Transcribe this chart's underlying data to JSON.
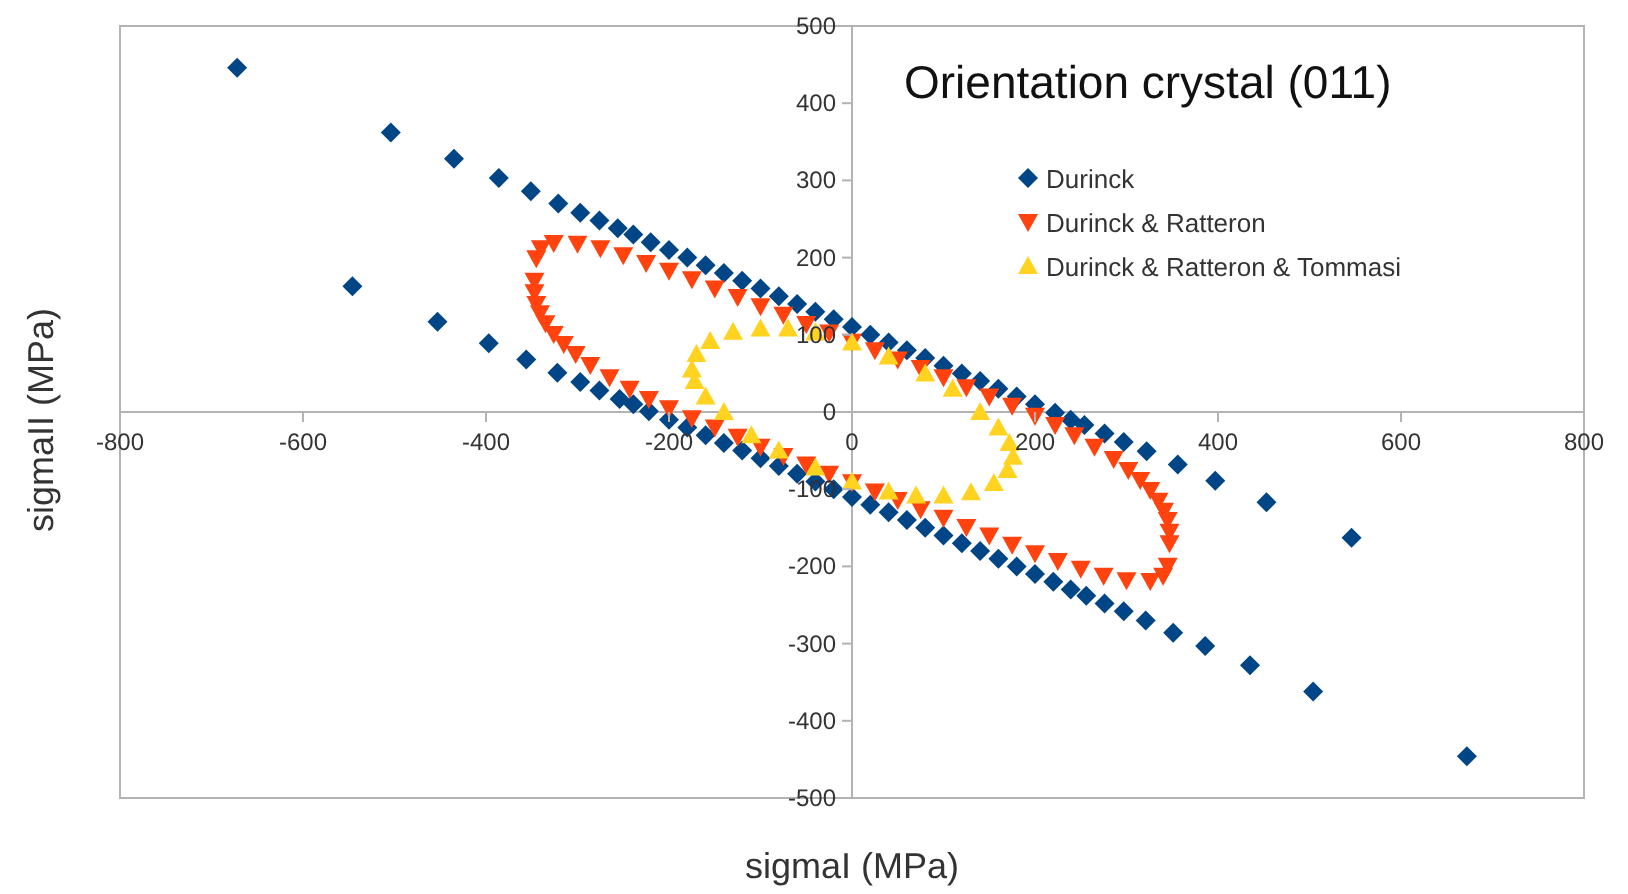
{
  "chart_data": {
    "type": "scatter",
    "title": "Orientation crystal (011)",
    "xlabel": "sigmaI (MPa)",
    "ylabel": "sigmaII (MPa)",
    "xlim": [
      -800,
      800
    ],
    "ylim": [
      -500,
      500
    ],
    "xticks": [
      -800,
      -600,
      -400,
      -200,
      0,
      200,
      400,
      600,
      800
    ],
    "yticks": [
      -500,
      -400,
      -300,
      -200,
      -100,
      0,
      100,
      200,
      300,
      400,
      500
    ],
    "grid": false,
    "legend": "top right",
    "series": [
      {
        "name": "Durinck",
        "color": "#004586",
        "marker": "diamond",
        "x": [
          -672,
          -504,
          -435,
          -386,
          -351,
          -321,
          -297,
          -276,
          -256,
          -239,
          -220,
          -200,
          -180,
          -160,
          -140,
          -120,
          -100,
          -80,
          -60,
          -40,
          -20,
          0,
          20,
          40,
          60,
          80,
          100,
          120,
          140,
          160,
          180,
          200,
          222,
          239,
          254,
          276,
          297,
          322,
          356,
          397,
          453,
          546,
          672,
          504,
          435,
          386,
          351,
          321,
          297,
          276,
          256,
          239,
          220,
          200,
          180,
          160,
          140,
          120,
          100,
          80,
          60,
          40,
          20,
          0,
          -20,
          -40,
          -60,
          -80,
          -100,
          -120,
          -140,
          -160,
          -180,
          -200,
          -222,
          -239,
          -254,
          -276,
          -297,
          -322,
          -356,
          -397,
          -453,
          -546
        ],
        "values": [
          446,
          362,
          328,
          303,
          286,
          270,
          258,
          248,
          238,
          230,
          220,
          210,
          200,
          190,
          180,
          170,
          160,
          150,
          140,
          130,
          120,
          110,
          100,
          90,
          80,
          70,
          60,
          50,
          40,
          30,
          20,
          10,
          -1,
          -10,
          -17,
          -28,
          -39,
          -51,
          -68,
          -89,
          -117,
          -163,
          -446,
          -362,
          -328,
          -303,
          -286,
          -270,
          -258,
          -248,
          -238,
          -230,
          -220,
          -210,
          -200,
          -190,
          -180,
          -170,
          -160,
          -150,
          -140,
          -130,
          -120,
          -110,
          -100,
          -90,
          -80,
          -70,
          -60,
          -50,
          -40,
          -30,
          -20,
          -10,
          1,
          10,
          17,
          28,
          39,
          51,
          68,
          89,
          117,
          163
        ]
      },
      {
        "name": "Durinck & Ratteron",
        "color": "#ff420e",
        "marker": "triangle-down",
        "x": [
          -347,
          -345,
          -340,
          -326,
          -300,
          -275,
          -250,
          -225,
          -200,
          -175,
          -150,
          -125,
          -100,
          -75,
          -50,
          -25,
          0,
          25,
          50,
          75,
          100,
          125,
          150,
          175,
          200,
          222,
          243,
          265,
          286,
          302,
          315,
          326,
          335,
          341,
          345,
          347,
          347,
          345,
          340,
          326,
          300,
          275,
          250,
          225,
          200,
          175,
          150,
          125,
          100,
          75,
          50,
          25,
          0,
          -25,
          -50,
          -75,
          -100,
          -125,
          -150,
          -175,
          -200,
          -222,
          -243,
          -265,
          -286,
          -302,
          -315,
          -326,
          -335,
          -341,
          -345,
          -347
        ],
        "values": [
          170,
          199,
          212,
          219,
          218,
          212,
          203,
          193,
          183,
          172,
          160,
          149,
          137,
          126,
          114,
          103,
          91,
          80,
          68,
          57,
          45,
          32,
          20,
          8,
          -5,
          -17,
          -30,
          -45,
          -61,
          -75,
          -88,
          -101,
          -115,
          -128,
          -140,
          -155,
          -170,
          -199,
          -212,
          -219,
          -218,
          -212,
          -203,
          -193,
          -183,
          -172,
          -160,
          -149,
          -137,
          -126,
          -114,
          -103,
          -91,
          -80,
          -68,
          -57,
          -45,
          -32,
          -20,
          -8,
          5,
          17,
          30,
          45,
          61,
          75,
          88,
          101,
          115,
          128,
          140,
          155
        ]
      },
      {
        "name": "Durinck & Ratteron & Tommasi",
        "color": "#ffd320",
        "marker": "triangle",
        "x": [
          -175,
          -170,
          -155,
          -130,
          -100,
          -70,
          -40,
          0,
          40,
          80,
          110,
          140,
          160,
          172,
          176,
          170,
          155,
          130,
          100,
          70,
          40,
          0,
          -40,
          -80,
          -110,
          -140,
          -160,
          -172
        ],
        "values": [
          55,
          75,
          92,
          104,
          108,
          108,
          103,
          90,
          72,
          50,
          30,
          0,
          -20,
          -40,
          -58,
          -75,
          -92,
          -104,
          -108,
          -108,
          -103,
          -90,
          -72,
          -50,
          -30,
          0,
          20,
          40
        ]
      }
    ]
  }
}
